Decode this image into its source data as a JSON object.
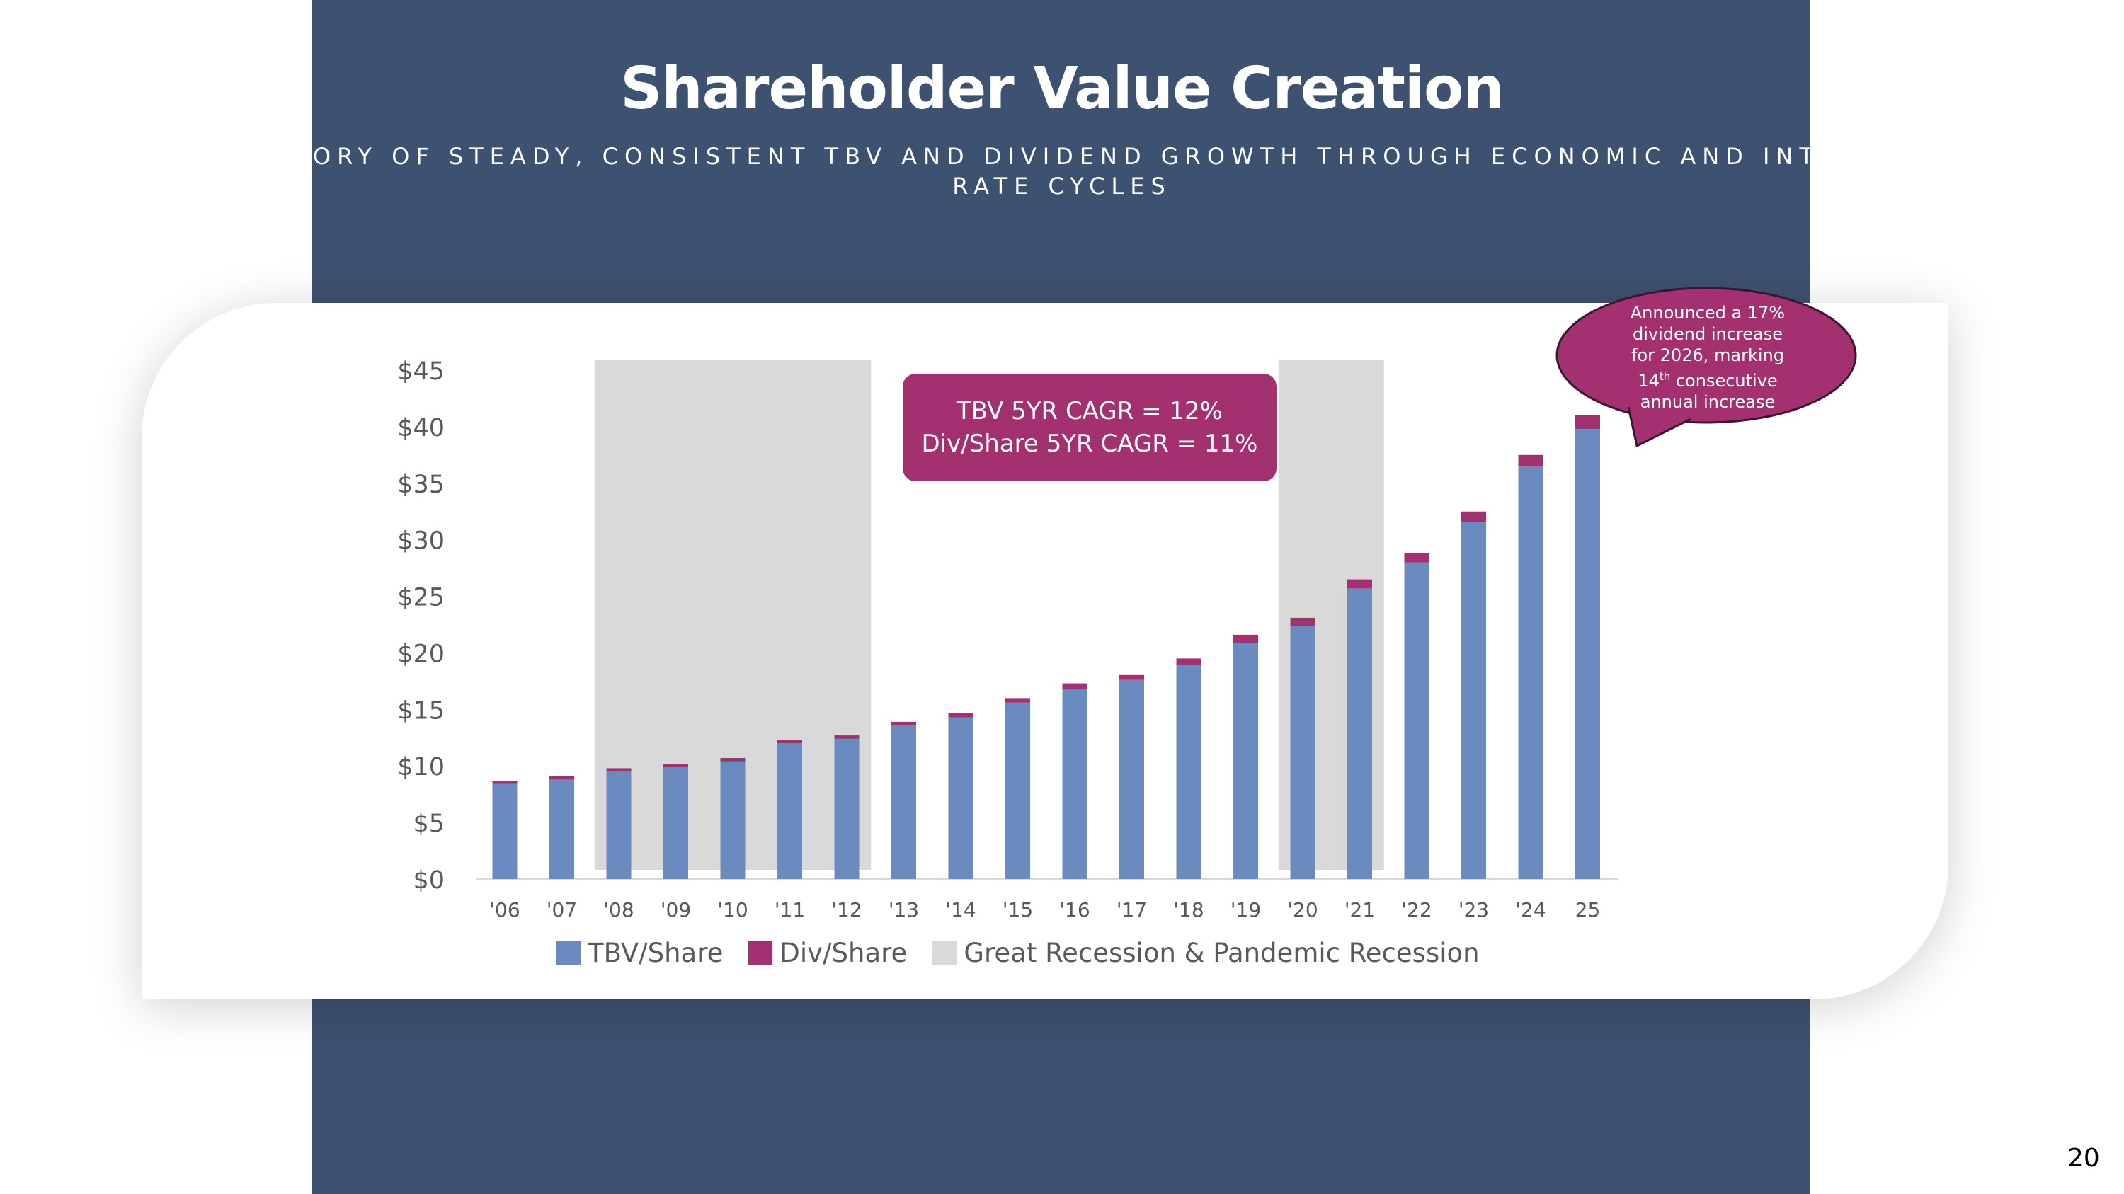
{
  "slide": {
    "title": "Shareholder Value Creation",
    "subtitle": "A HISTORY OF STEADY, CONSISTENT TBV AND DIVIDEND GROWTH THROUGH ECONOMIC AND INTEREST RATE CYCLES",
    "page_number": "20"
  },
  "callout": {
    "line1": "TBV 5YR CAGR = 12%",
    "line2": "Div/Share 5YR CAGR = 11%"
  },
  "bubble": {
    "line1": "Announced a 17%",
    "line2": "dividend increase",
    "line3": "for 2026, marking",
    "line4_num": "14",
    "line4_sup": "th",
    "line4_rest": " consecutive",
    "line5": "annual increase"
  },
  "legend": {
    "tbv": "TBV/Share",
    "div": "Div/Share",
    "recession": "Great Recession & Pandemic Recession"
  },
  "colors": {
    "navy": "#3d5170",
    "tbv": "#6a8bbf",
    "div": "#a3316f",
    "recession": "#d9d9d9",
    "axis_text": "#595959"
  },
  "chart_data": {
    "type": "bar",
    "stacked": true,
    "categories": [
      "'06",
      "'07",
      "'08",
      "'09",
      "'10",
      "'11",
      "'12",
      "'13",
      "'14",
      "'15",
      "'16",
      "'17",
      "'18",
      "'19",
      "'20",
      "'21",
      "'22",
      "'23",
      "'24",
      "25"
    ],
    "series": [
      {
        "name": "TBV/Share",
        "values": [
          8.4,
          8.8,
          9.5,
          9.9,
          10.4,
          12.0,
          12.4,
          13.6,
          14.3,
          15.6,
          16.8,
          17.6,
          18.9,
          20.9,
          22.4,
          25.7,
          28.0,
          31.6,
          36.5,
          39.8
        ]
      },
      {
        "name": "Div/Share",
        "values": [
          0.3,
          0.3,
          0.3,
          0.3,
          0.3,
          0.3,
          0.3,
          0.3,
          0.4,
          0.4,
          0.5,
          0.5,
          0.6,
          0.7,
          0.7,
          0.8,
          0.8,
          0.9,
          1.0,
          1.2
        ]
      }
    ],
    "shaded_periods": [
      {
        "label": "Great Recession",
        "from": "'08",
        "to": "'12"
      },
      {
        "label": "Pandemic Recession",
        "from": "'20",
        "to": "'21"
      }
    ],
    "y_ticks": [
      "$0",
      "$5",
      "$10",
      "$15",
      "$20",
      "$25",
      "$30",
      "$35",
      "$40",
      "$45"
    ],
    "ylim": [
      0,
      45
    ],
    "title": "",
    "xlabel": "",
    "ylabel": ""
  }
}
